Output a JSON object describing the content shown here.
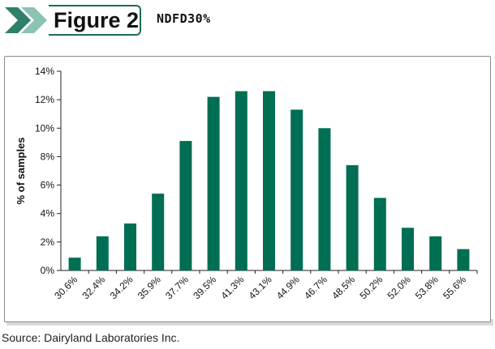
{
  "header": {
    "figure_label": "Figure 2",
    "subtitle": "NDFD30%"
  },
  "colors": {
    "bar": "#006e53",
    "chevron_dark": "#2f7f6a",
    "chevron_light": "#8cc2b2",
    "border": "#1f6b55"
  },
  "chart_data": {
    "type": "bar",
    "categories": [
      "30.6%",
      "32.4%",
      "34.2%",
      "35.9%",
      "37.7%",
      "39.5%",
      "41.3%",
      "43.1%",
      "44.9%",
      "46.7%",
      "48.5%",
      "50.2%",
      "52.0%",
      "53.8%",
      "55.6%"
    ],
    "values": [
      0.9,
      2.4,
      3.3,
      5.4,
      9.1,
      12.2,
      12.6,
      12.6,
      11.3,
      10.0,
      7.4,
      5.1,
      3.0,
      2.4,
      1.5
    ],
    "title": "",
    "xlabel": "",
    "ylabel": "% of samples",
    "ylim": [
      0,
      14
    ],
    "yticks": [
      "0%",
      "2%",
      "4%",
      "6%",
      "8%",
      "10%",
      "12%",
      "14%"
    ],
    "ytick_values": [
      0,
      2,
      4,
      6,
      8,
      10,
      12,
      14
    ],
    "grid": false,
    "legend": "none"
  },
  "footer": {
    "source": "Source: Dairyland Laboratories Inc."
  }
}
